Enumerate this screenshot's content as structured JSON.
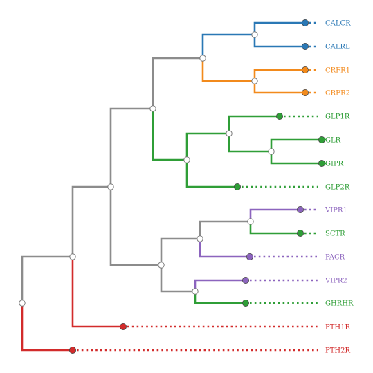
{
  "colors": {
    "blue": "#2a78b5",
    "orange": "#f28a1c",
    "green": "#2f9e37",
    "purple": "#8c64be",
    "red": "#d22b2b",
    "gray": "#8c8c8c"
  },
  "tree": {
    "leaves": [
      {
        "label": "CALCR",
        "color": "blue"
      },
      {
        "label": "CALRL",
        "color": "blue"
      },
      {
        "label": "CRFR1",
        "color": "orange"
      },
      {
        "label": "CRFR2",
        "color": "orange"
      },
      {
        "label": "GLP1R",
        "color": "green"
      },
      {
        "label": "GLR",
        "color": "green"
      },
      {
        "label": "GIPR",
        "color": "green"
      },
      {
        "label": "GLP2R",
        "color": "green"
      },
      {
        "label": "VIPR1",
        "color": "purple"
      },
      {
        "label": "SCTR",
        "color": "green"
      },
      {
        "label": "PACR",
        "color": "purple"
      },
      {
        "label": "VIPR2",
        "color": "purple"
      },
      {
        "label": "GHRHR",
        "color": "green"
      },
      {
        "label": "PTH1R",
        "color": "red"
      },
      {
        "label": "PTH2R",
        "color": "red"
      }
    ]
  }
}
